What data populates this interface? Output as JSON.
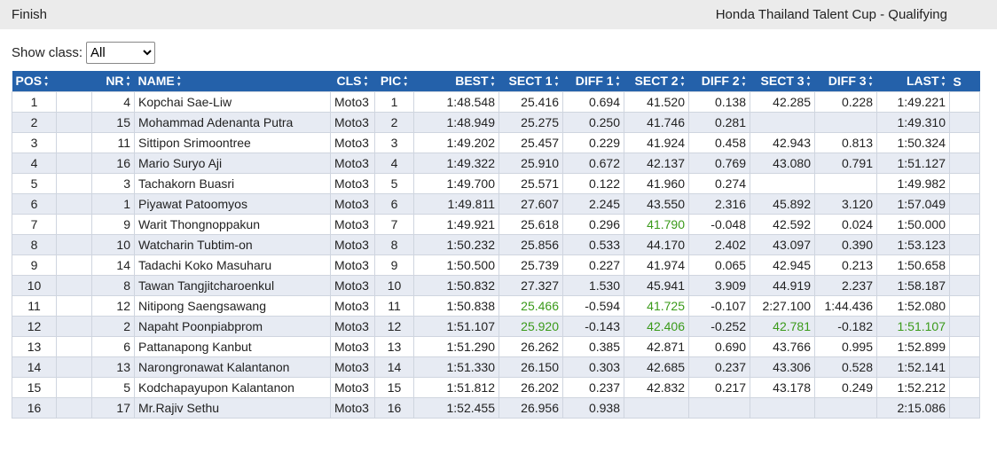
{
  "header": {
    "status": "Finish",
    "title": "Honda Thailand Talent Cup - Qualifying"
  },
  "filter": {
    "label": "Show class:",
    "selected": "All"
  },
  "table": {
    "columns": [
      "POS",
      "NR",
      "NAME",
      "CLS",
      "PIC",
      "BEST",
      "SECT 1",
      "DIFF 1",
      "SECT 2",
      "DIFF 2",
      "SECT 3",
      "DIFF 3",
      "LAST",
      "S"
    ],
    "highlight_color": "#3a9a1a",
    "highlighted": [
      [
        6,
        8
      ],
      [
        10,
        6
      ],
      [
        10,
        8
      ],
      [
        11,
        6
      ],
      [
        11,
        8
      ],
      [
        11,
        10
      ],
      [
        11,
        12
      ]
    ],
    "rows": [
      [
        "1",
        "4",
        "Kopchai Sae-Liw",
        "Moto3",
        "1",
        "1:48.548",
        "25.416",
        "0.694",
        "41.520",
        "0.138",
        "42.285",
        "0.228",
        "1:49.221"
      ],
      [
        "2",
        "15",
        "Mohammad Adenanta Putra",
        "Moto3",
        "2",
        "1:48.949",
        "25.275",
        "0.250",
        "41.746",
        "0.281",
        null,
        null,
        "1:49.310"
      ],
      [
        "3",
        "11",
        "Sittipon Srimoontree",
        "Moto3",
        "3",
        "1:49.202",
        "25.457",
        "0.229",
        "41.924",
        "0.458",
        "42.943",
        "0.813",
        "1:50.324"
      ],
      [
        "4",
        "16",
        "Mario Suryo Aji",
        "Moto3",
        "4",
        "1:49.322",
        "25.910",
        "0.672",
        "42.137",
        "0.769",
        "43.080",
        "0.791",
        "1:51.127"
      ],
      [
        "5",
        "3",
        "Tachakorn Buasri",
        "Moto3",
        "5",
        "1:49.700",
        "25.571",
        "0.122",
        "41.960",
        "0.274",
        null,
        null,
        "1:49.982"
      ],
      [
        "6",
        "1",
        "Piyawat Patoomyos",
        "Moto3",
        "6",
        "1:49.811",
        "27.607",
        "2.245",
        "43.550",
        "2.316",
        "45.892",
        "3.120",
        "1:57.049"
      ],
      [
        "7",
        "9",
        "Warit Thongnoppakun",
        "Moto3",
        "7",
        "1:49.921",
        "25.618",
        "0.296",
        "41.790",
        "-0.048",
        "42.592",
        "0.024",
        "1:50.000"
      ],
      [
        "8",
        "10",
        "Watcharin Tubtim-on",
        "Moto3",
        "8",
        "1:50.232",
        "25.856",
        "0.533",
        "44.170",
        "2.402",
        "43.097",
        "0.390",
        "1:53.123"
      ],
      [
        "9",
        "14",
        "Tadachi Koko Masuharu",
        "Moto3",
        "9",
        "1:50.500",
        "25.739",
        "0.227",
        "41.974",
        "0.065",
        "42.945",
        "0.213",
        "1:50.658"
      ],
      [
        "10",
        "8",
        "Tawan Tangjitcharoenkul",
        "Moto3",
        "10",
        "1:50.832",
        "27.327",
        "1.530",
        "45.941",
        "3.909",
        "44.919",
        "2.237",
        "1:58.187"
      ],
      [
        "11",
        "12",
        "Nitipong Saengsawang",
        "Moto3",
        "11",
        "1:50.838",
        "25.466",
        "-0.594",
        "41.725",
        "-0.107",
        "2:27.100",
        "1:44.436",
        "1:52.080"
      ],
      [
        "12",
        "2",
        "Napaht Poonpiabprom",
        "Moto3",
        "12",
        "1:51.107",
        "25.920",
        "-0.143",
        "42.406",
        "-0.252",
        "42.781",
        "-0.182",
        "1:51.107"
      ],
      [
        "13",
        "6",
        "Pattanapong Kanbut",
        "Moto3",
        "13",
        "1:51.290",
        "26.262",
        "0.385",
        "42.871",
        "0.690",
        "43.766",
        "0.995",
        "1:52.899"
      ],
      [
        "14",
        "13",
        "Narongronawat Kalantanon",
        "Moto3",
        "14",
        "1:51.330",
        "26.150",
        "0.303",
        "42.685",
        "0.237",
        "43.306",
        "0.528",
        "1:52.141"
      ],
      [
        "15",
        "5",
        "Kodchapayupon Kalantanon",
        "Moto3",
        "15",
        "1:51.812",
        "26.202",
        "0.237",
        "42.832",
        "0.217",
        "43.178",
        "0.249",
        "1:52.212"
      ],
      [
        "16",
        "17",
        "Mr.Rajiv Sethu",
        "Moto3",
        "16",
        "1:52.455",
        "26.956",
        "0.938",
        null,
        null,
        null,
        null,
        "2:15.086"
      ]
    ]
  }
}
